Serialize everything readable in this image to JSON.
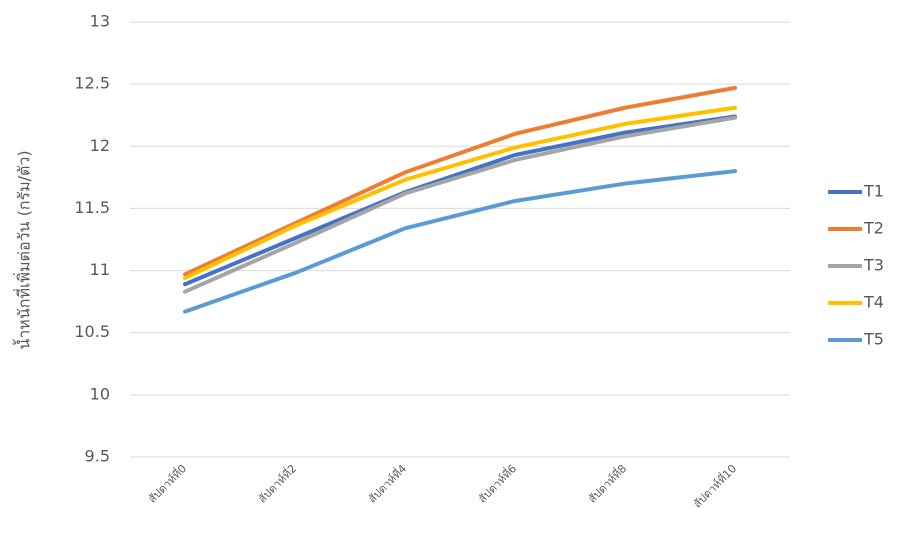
{
  "chart_data": {
    "type": "line",
    "y_label": "น้ำหนักที่เพิ่มต่อวัน (กรัม/ตัว)",
    "categories": [
      "สัปดาห์ที่0",
      "สัปดาห์ที่2",
      "สัปดาห์ที่4",
      "สัปดาห์ที่6",
      "สัปดาห์ที่8",
      "สัปดาห์ที่10"
    ],
    "series": [
      {
        "name": "T1",
        "color": "#4472c4",
        "values": [
          10.89,
          11.26,
          11.63,
          11.93,
          12.11,
          12.24
        ]
      },
      {
        "name": "T2",
        "color": "#ed7d31",
        "values": [
          10.97,
          11.38,
          11.79,
          12.1,
          12.31,
          12.47
        ]
      },
      {
        "name": "T3",
        "color": "#a5a5a5",
        "values": [
          10.83,
          11.22,
          11.62,
          11.89,
          12.08,
          12.23
        ]
      },
      {
        "name": "T4",
        "color": "#ffc000",
        "values": [
          10.94,
          11.36,
          11.73,
          11.99,
          12.18,
          12.31
        ]
      },
      {
        "name": "T5",
        "color": "#5b9bd5",
        "values": [
          10.67,
          10.98,
          11.34,
          11.56,
          11.7,
          11.8
        ]
      }
    ],
    "ylim": [
      9.5,
      13
    ],
    "yticks": [
      9.5,
      10,
      10.5,
      11,
      11.5,
      12,
      12.5,
      13
    ],
    "grid": true,
    "legend": "right"
  }
}
